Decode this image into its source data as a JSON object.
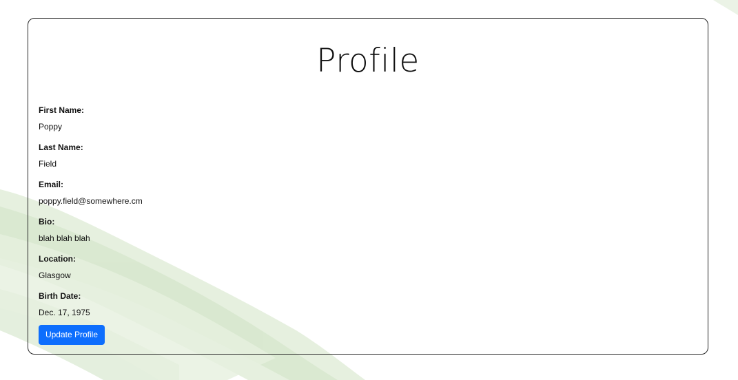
{
  "page": {
    "title": "Profile"
  },
  "profile": {
    "fields": [
      {
        "label": "First Name:",
        "value": "Poppy"
      },
      {
        "label": "Last Name:",
        "value": "Field"
      },
      {
        "label": "Email:",
        "value": "poppy.field@somewhere.cm"
      },
      {
        "label": "Bio:",
        "value": "blah blah blah"
      },
      {
        "label": "Location:",
        "value": "Glasgow"
      },
      {
        "label": "Birth Date:",
        "value": "Dec. 17, 1975"
      }
    ]
  },
  "actions": {
    "update_label": "Update Profile"
  },
  "colors": {
    "accent": "#0d6efd",
    "background_art": "#d8e8cf"
  }
}
